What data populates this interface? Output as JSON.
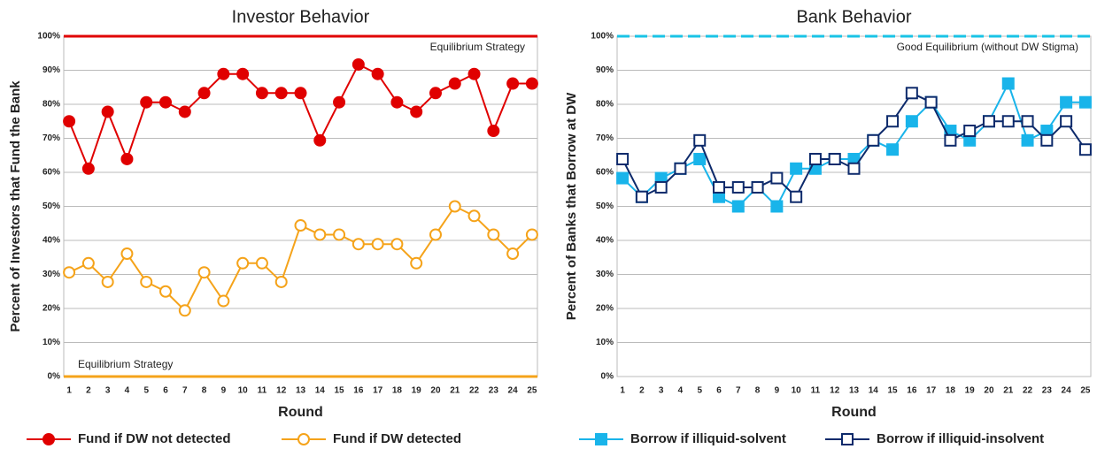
{
  "chart_data": [
    {
      "type": "line",
      "title": "Investor Behavior",
      "xlabel": "Round",
      "ylabel": "Percent of Investors that Fund the Bank",
      "x": [
        1,
        2,
        3,
        4,
        5,
        6,
        7,
        8,
        9,
        10,
        11,
        12,
        13,
        14,
        15,
        16,
        17,
        18,
        19,
        20,
        21,
        22,
        23,
        24,
        25
      ],
      "xlim": [
        0.72,
        25.28
      ],
      "ylim": [
        0,
        100
      ],
      "yticks": [
        {
          "value": 0,
          "label": "0%"
        },
        {
          "value": 10,
          "label": "10%"
        },
        {
          "value": 20,
          "label": "20%"
        },
        {
          "value": 30,
          "label": "30%"
        },
        {
          "value": 40,
          "label": "40%"
        },
        {
          "value": 50,
          "label": "50%"
        },
        {
          "value": 60,
          "label": "60%"
        },
        {
          "value": 70,
          "label": "70%"
        },
        {
          "value": 80,
          "label": "80%"
        },
        {
          "value": 90,
          "label": "90%"
        },
        {
          "value": 100,
          "label": "100%"
        }
      ],
      "grid": true,
      "annotations": [
        {
          "text": "Equilibrium Strategy",
          "value": 100,
          "color": "#e00000"
        },
        {
          "text": "Equilibrium Strategy",
          "value": 0,
          "color": "#f5a31a"
        }
      ],
      "series": [
        {
          "name": "Fund if DW not detected",
          "color": "#e00000",
          "marker": "circle",
          "filled": true,
          "values": [
            75,
            61.1,
            77.8,
            63.9,
            80.6,
            80.6,
            77.8,
            83.3,
            88.9,
            88.9,
            83.3,
            83.3,
            83.3,
            69.4,
            80.6,
            91.7,
            88.9,
            80.6,
            77.8,
            83.3,
            86.1,
            88.9,
            72.2,
            86.1,
            86.1
          ]
        },
        {
          "name": "Fund if DW detected",
          "color": "#f5a31a",
          "marker": "circle",
          "filled": false,
          "values": [
            30.6,
            33.3,
            27.8,
            36.1,
            27.8,
            25,
            19.4,
            30.6,
            22.2,
            33.3,
            33.3,
            27.8,
            44.4,
            41.7,
            41.7,
            38.9,
            38.9,
            38.9,
            33.3,
            41.7,
            50,
            47.2,
            41.7,
            36.1,
            41.7
          ]
        }
      ]
    },
    {
      "type": "line",
      "title": "Bank Behavior",
      "xlabel": "Round",
      "ylabel": "Percent of Banks that Borrow at DW",
      "x": [
        1,
        2,
        3,
        4,
        5,
        6,
        7,
        8,
        9,
        10,
        11,
        12,
        13,
        14,
        15,
        16,
        17,
        18,
        19,
        20,
        21,
        22,
        23,
        24,
        25
      ],
      "xlim": [
        0.72,
        25.28
      ],
      "ylim": [
        0,
        100
      ],
      "yticks": [
        {
          "value": 0,
          "label": "0%"
        },
        {
          "value": 10,
          "label": "10%"
        },
        {
          "value": 20,
          "label": "20%"
        },
        {
          "value": 30,
          "label": "30%"
        },
        {
          "value": 40,
          "label": "40%"
        },
        {
          "value": 50,
          "label": "50%"
        },
        {
          "value": 60,
          "label": "60%"
        },
        {
          "value": 70,
          "label": "70%"
        },
        {
          "value": 80,
          "label": "80%"
        },
        {
          "value": 90,
          "label": "90%"
        },
        {
          "value": 100,
          "label": "100%"
        }
      ],
      "grid": true,
      "annotations": [
        {
          "text": "Good Equilibrium (without DW Stigma)",
          "value": 100,
          "color": "#19c3e6"
        }
      ],
      "series": [
        {
          "name": "Borrow if illiquid-solvent",
          "color": "#19b4ea",
          "marker": "square",
          "filled": true,
          "values": [
            58.3,
            52.8,
            58.3,
            61.1,
            63.9,
            52.8,
            50,
            55.6,
            50,
            61.1,
            61.1,
            63.9,
            63.9,
            69.4,
            66.7,
            75,
            80.6,
            72.2,
            69.4,
            75,
            86.1,
            69.4,
            72.2,
            80.6,
            80.6
          ]
        },
        {
          "name": "Borrow if illiquid-insolvent",
          "color": "#0d2a6b",
          "marker": "square",
          "filled": false,
          "values": [
            63.9,
            52.8,
            55.6,
            61.1,
            69.4,
            55.6,
            55.6,
            55.6,
            58.3,
            52.8,
            63.9,
            63.9,
            61.1,
            69.4,
            75,
            83.3,
            80.6,
            69.4,
            72.2,
            75,
            75,
            75,
            69.4,
            75,
            66.7
          ]
        }
      ]
    }
  ]
}
